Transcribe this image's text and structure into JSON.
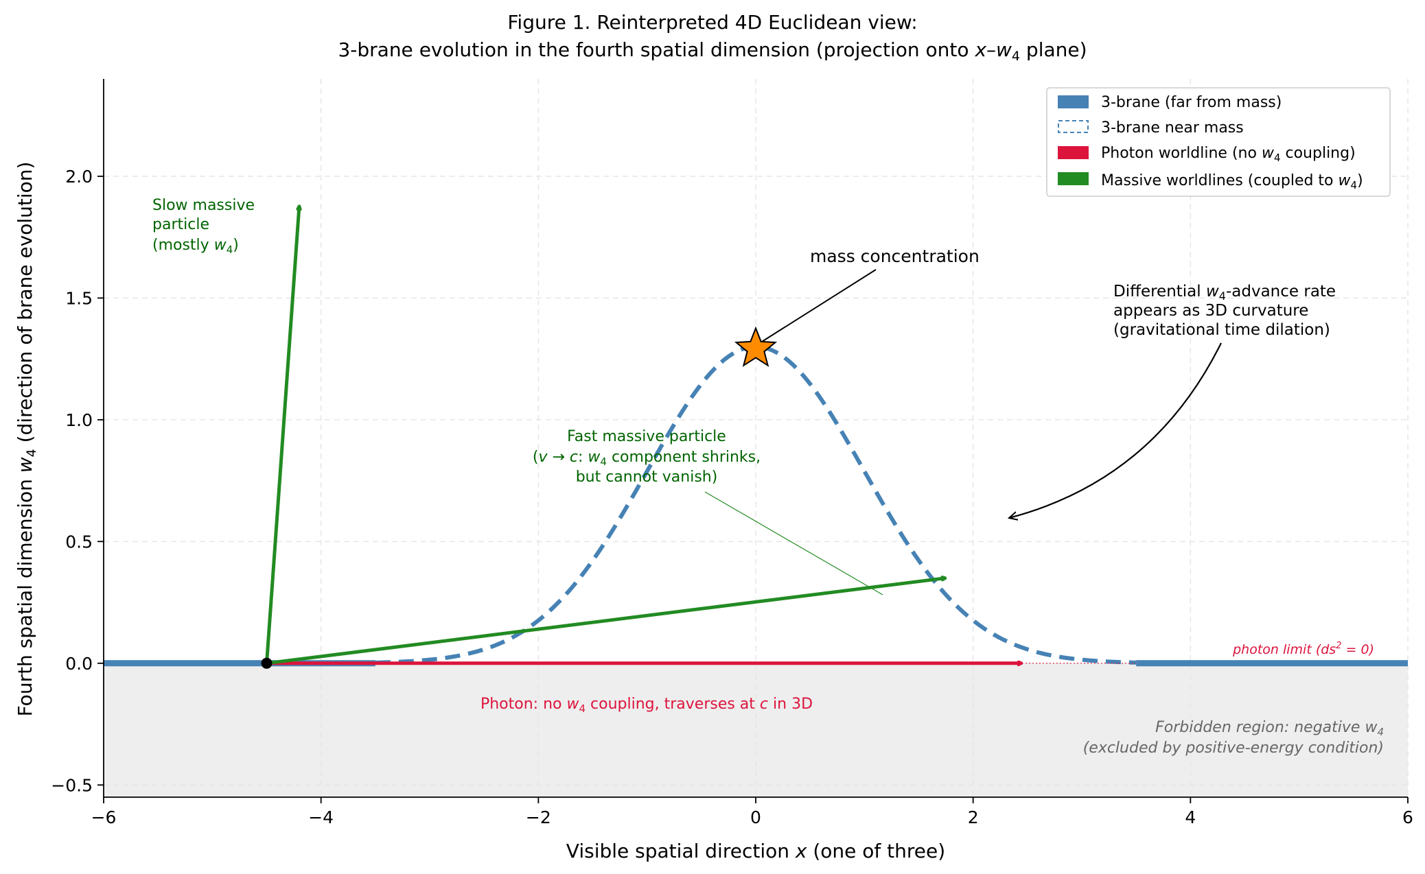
{
  "chart_data": {
    "type": "line",
    "title_line1": "Figure 1. Reinterpreted 4D Euclidean view:",
    "title_line2": "3-brane evolution in the fourth spatial dimension (projection onto x–w4 plane)",
    "xlabel": "Visible spatial direction x (one of three)",
    "ylabel": "Fourth spatial dimension w4  (direction of brane evolution)",
    "xlim": [
      -6,
      6
    ],
    "ylim": [
      -0.55,
      2.4
    ],
    "grid": true,
    "xticks": [
      {
        "value": -6,
        "label": "−6"
      },
      {
        "value": -4,
        "label": "−4"
      },
      {
        "value": -2,
        "label": "−2"
      },
      {
        "value": 0,
        "label": "0"
      },
      {
        "value": 2,
        "label": "2"
      },
      {
        "value": 4,
        "label": "4"
      },
      {
        "value": 6,
        "label": "6"
      }
    ],
    "yticks": [
      {
        "value": -0.5,
        "label": "−0.5"
      },
      {
        "value": 0.0,
        "label": "0.0"
      },
      {
        "value": 0.5,
        "label": "0.5"
      },
      {
        "value": 1.0,
        "label": "1.0"
      },
      {
        "value": 1.5,
        "label": "1.5"
      },
      {
        "value": 2.0,
        "label": "2.0"
      }
    ],
    "legend": {
      "placement": "top-right",
      "entries": [
        {
          "label": "3-brane (far from mass)",
          "color": "#4682b4",
          "style": "solid"
        },
        {
          "label": "3-brane near mass",
          "color": "#4682b4",
          "style": "dashed"
        },
        {
          "label": "Photon worldline (no w4 coupling)",
          "color": "#dc143c",
          "style": "solid"
        },
        {
          "label": "Massive worldlines (coupled to w4)",
          "color": "#228b22",
          "style": "solid"
        }
      ]
    },
    "series": [
      {
        "name": "3-brane (far from mass)",
        "segments": [
          [
            -6,
            -3.5
          ],
          [
            3.5,
            6
          ]
        ],
        "w4": 0.0,
        "color": "#4682b4"
      },
      {
        "name": "3-brane near mass",
        "function": "gaussian",
        "amplitude": 1.3,
        "sigma": 1.0,
        "x_range": [
          -3.5,
          3.5
        ],
        "color": "#4682b4"
      },
      {
        "name": "Photon worldline",
        "from": [
          -4.5,
          0.0
        ],
        "to": [
          2.45,
          0.0
        ],
        "color": "#dc143c"
      },
      {
        "name": "Slow massive particle",
        "from": [
          -4.5,
          0.0
        ],
        "to": [
          -4.2,
          1.88
        ],
        "color": "#228b22"
      },
      {
        "name": "Fast massive particle",
        "from": [
          -4.5,
          0.0
        ],
        "to": [
          1.75,
          0.35
        ],
        "color": "#228b22"
      }
    ],
    "photon_limit_line": {
      "from": [
        2.45,
        0.0
      ],
      "to": [
        3.5,
        0.0
      ],
      "color": "#dc143c"
    },
    "origin_point": {
      "x": -4.5,
      "y": 0.0,
      "color": "#000000"
    },
    "mass_marker": {
      "x": 0.0,
      "y": 1.3,
      "color": "#ff8c00",
      "shape": "star"
    },
    "forbidden_region": {
      "y_range": [
        -0.55,
        0.0
      ],
      "color": "#eeeeee"
    },
    "annotations": {
      "mass": "mass concentration",
      "slow_line1": "Slow massive",
      "slow_line2": "particle",
      "slow_line3": "(mostly w4)",
      "fast_line1": "Fast massive particle",
      "fast_line2": "(v → c: w4 component shrinks,",
      "fast_line3": "but cannot vanish)",
      "diff_line1": "Differential w4-advance rate",
      "diff_line2": "appears as 3D curvature",
      "diff_line3": "(gravitational time dilation)",
      "photon_label": "Photon: no w4 coupling, traverses at c in 3D",
      "photon_limit": "photon limit (ds2 = 0)",
      "forbidden_line1": "Forbidden region: negative w4",
      "forbidden_line2": "(excluded by positive-energy condition)"
    }
  }
}
